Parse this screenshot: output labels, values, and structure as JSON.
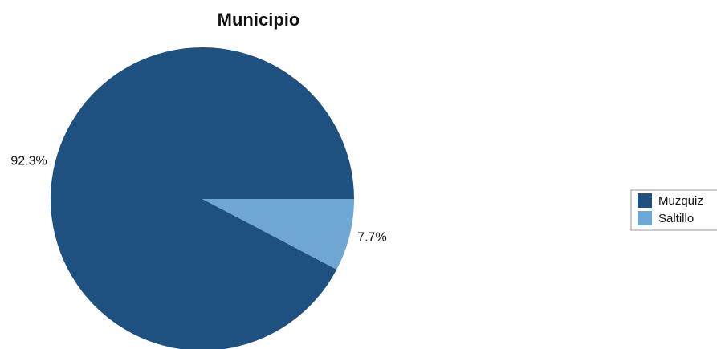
{
  "chart_data": {
    "type": "pie",
    "title": "Municipio",
    "categories": [
      "Muzquiz",
      "Saltillo"
    ],
    "values": [
      92.3,
      7.7
    ],
    "labels": [
      "92.3%",
      "7.7%"
    ],
    "colors": [
      "#1f5180",
      "#6ea6d4"
    ],
    "legend_position": "right"
  }
}
